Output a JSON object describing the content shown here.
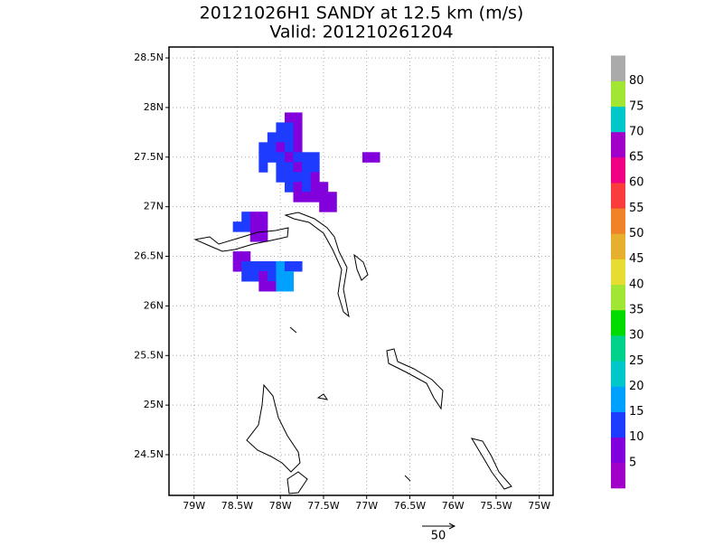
{
  "title": "20121026H1 SANDY at 12.5 km (m/s)",
  "subtitle": "Valid: 201210261204",
  "map": {
    "lonlim": [
      -79.29,
      -74.84
    ],
    "latlim": [
      24.09,
      28.61
    ],
    "lon_ticks": [
      {
        "value": -79,
        "label": "79W"
      },
      {
        "value": -78.5,
        "label": "78.5W"
      },
      {
        "value": -78,
        "label": "78W"
      },
      {
        "value": -77.5,
        "label": "77.5W"
      },
      {
        "value": -77,
        "label": "77W"
      },
      {
        "value": -76.5,
        "label": "76.5W"
      },
      {
        "value": -76,
        "label": "76W"
      },
      {
        "value": -75.5,
        "label": "75.5W"
      },
      {
        "value": -75,
        "label": "75W"
      }
    ],
    "lat_ticks": [
      {
        "value": 24.5,
        "label": "24.5N"
      },
      {
        "value": 25,
        "label": "25N"
      },
      {
        "value": 25.5,
        "label": "25.5N"
      },
      {
        "value": 26,
        "label": "26N"
      },
      {
        "value": 26.5,
        "label": "26.5N"
      },
      {
        "value": 27,
        "label": "27N"
      },
      {
        "value": 27.5,
        "label": "27.5N"
      },
      {
        "value": 28,
        "label": "28N"
      },
      {
        "value": 28.5,
        "label": "28.5N"
      }
    ],
    "cells": {
      "lat": [
        27.9,
        27.9,
        27.8,
        27.8,
        27.8,
        27.7,
        27.7,
        27.7,
        27.7,
        27.6,
        27.6,
        27.6,
        27.6,
        27.6,
        27.5,
        27.5,
        27.5,
        27.5,
        27.5,
        27.5,
        27.5,
        27.4,
        27.4,
        27.4,
        27.4,
        27.4,
        27.4,
        27.3,
        27.3,
        27.3,
        27.3,
        27.3,
        27.2,
        27.2,
        27.2,
        27.2,
        27.2,
        27.1,
        27.1,
        27.1,
        27.1,
        27.1,
        27.0,
        27.0,
        27.5,
        27.5,
        26.9,
        26.9,
        26.9,
        26.8,
        26.8,
        26.8,
        26.8,
        26.7,
        26.7,
        26.5,
        26.5,
        26.4,
        26.4,
        26.4,
        26.4,
        26.4,
        26.4,
        26.4,
        26.4,
        26.3,
        26.3,
        26.3,
        26.3,
        26.3,
        26.3,
        26.2,
        26.2,
        26.2,
        26.2
      ],
      "lon": [
        -77.9,
        -77.8,
        -78.0,
        -77.9,
        -77.8,
        -78.1,
        -78.0,
        -77.9,
        -77.8,
        -78.2,
        -78.1,
        -78.0,
        -77.9,
        -77.8,
        -78.2,
        -78.1,
        -78.0,
        -77.9,
        -77.8,
        -77.7,
        -77.6,
        -78.2,
        -78.0,
        -77.9,
        -77.8,
        -77.7,
        -77.6,
        -78.0,
        -77.9,
        -77.8,
        -77.7,
        -77.6,
        -77.9,
        -77.8,
        -77.7,
        -77.6,
        -77.5,
        -77.8,
        -77.7,
        -77.6,
        -77.5,
        -77.4,
        -77.5,
        -77.4,
        -77.0,
        -76.9,
        -78.4,
        -78.3,
        -78.2,
        -78.5,
        -78.4,
        -78.3,
        -78.2,
        -78.3,
        -78.2,
        -78.5,
        -78.4,
        -78.5,
        -78.4,
        -78.3,
        -78.2,
        -78.1,
        -78.0,
        -77.9,
        -77.8,
        -78.4,
        -78.3,
        -78.2,
        -78.1,
        -78.0,
        -77.9,
        -78.2,
        -78.1,
        -78.0,
        -77.9
      ],
      "speed": [
        8,
        7,
        12,
        12,
        7,
        12,
        12,
        12,
        7,
        12,
        12,
        7,
        12,
        7,
        12,
        12,
        12,
        7,
        12,
        12,
        12,
        12,
        12,
        12,
        7,
        12,
        12,
        12,
        12,
        12,
        12,
        7,
        12,
        7,
        12,
        7,
        7,
        7,
        7,
        7,
        7,
        7,
        7,
        7,
        7,
        7,
        12,
        7,
        7,
        12,
        12,
        7,
        7,
        7,
        7,
        7,
        7,
        7,
        12,
        12,
        12,
        12,
        17,
        12,
        12,
        12,
        12,
        7,
        12,
        17,
        17,
        7,
        7,
        17,
        17
      ]
    }
  },
  "colorbar": {
    "levels": [
      5,
      10,
      15,
      20,
      25,
      30,
      35,
      40,
      45,
      50,
      55,
      60,
      65,
      70,
      75,
      80
    ],
    "colors": [
      "#a000c8",
      "#8200dc",
      "#1e3cff",
      "#00a0ff",
      "#00c8c8",
      "#00d28c",
      "#00dc00",
      "#a0e632",
      "#e6dc32",
      "#e6af2d",
      "#f08228",
      "#fa3c3c",
      "#f00082",
      "#a000c8",
      "#00c8c8",
      "#a0e632",
      "#aaaaaa"
    ]
  },
  "vector_scale": 50
}
